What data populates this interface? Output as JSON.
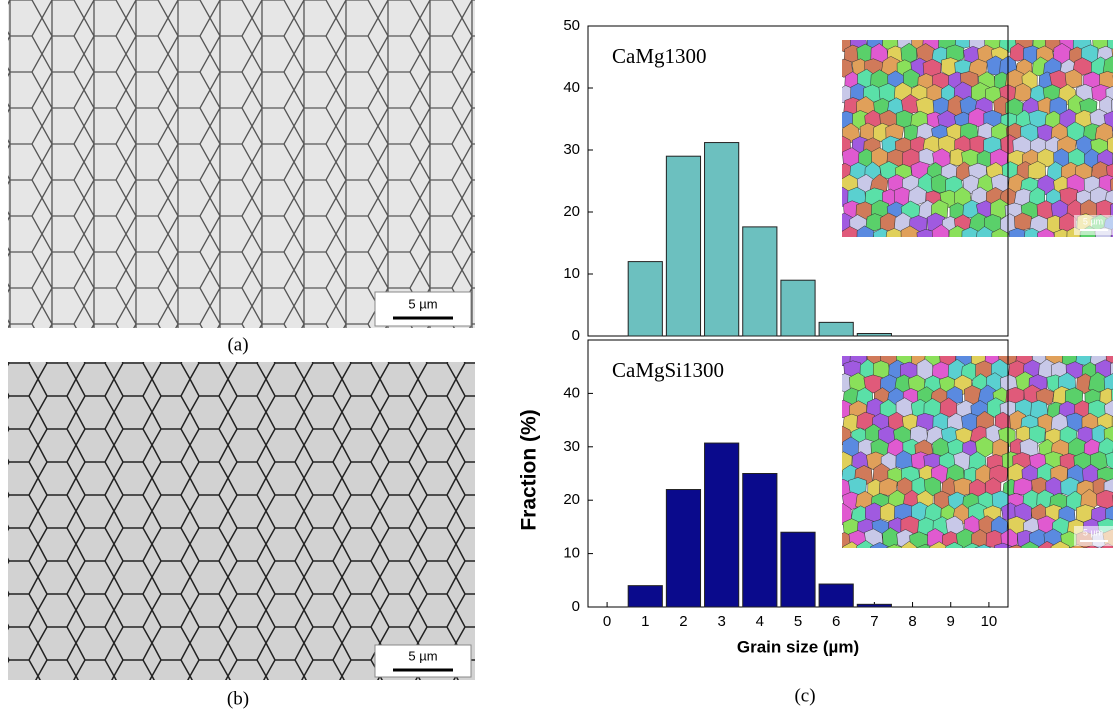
{
  "figure": {
    "panel_labels": [
      "(a)",
      "(b)",
      "(c)"
    ],
    "scale_bars": [
      "5 µm",
      "5 µm"
    ],
    "inset_scale_bars": [
      "5 µm",
      "5 µm"
    ],
    "ylabel": "Fraction (%)"
  },
  "chart_data": [
    {
      "type": "histogram",
      "annotation": "CaMg1300",
      "bins": [
        0.5,
        1.5,
        2.5,
        3.5,
        4.5,
        5.5,
        6.5,
        7.5
      ],
      "values": [
        12,
        29,
        31.2,
        17.6,
        9,
        2.2,
        0.4
      ],
      "color": "#6cc0bf",
      "xlim": [
        -0.5,
        10.5
      ],
      "ylim": [
        0,
        50
      ],
      "yticks": [
        0,
        10,
        20,
        30,
        40,
        50
      ]
    },
    {
      "type": "histogram",
      "annotation": "CaMgSi1300",
      "bins": [
        0.5,
        1.5,
        2.5,
        3.5,
        4.5,
        5.5,
        6.5,
        7.5
      ],
      "values": [
        4,
        22,
        30.7,
        25,
        14,
        4.3,
        0.5
      ],
      "color": "#0a0a8c",
      "xlim": [
        -0.5,
        10.5
      ],
      "ylim": [
        0,
        50
      ],
      "yticks": [
        0,
        10,
        20,
        30,
        40
      ],
      "xticks": [
        0,
        1,
        2,
        3,
        4,
        5,
        6,
        7,
        8,
        9,
        10
      ],
      "xlabel": "Grain size (µm)"
    }
  ]
}
